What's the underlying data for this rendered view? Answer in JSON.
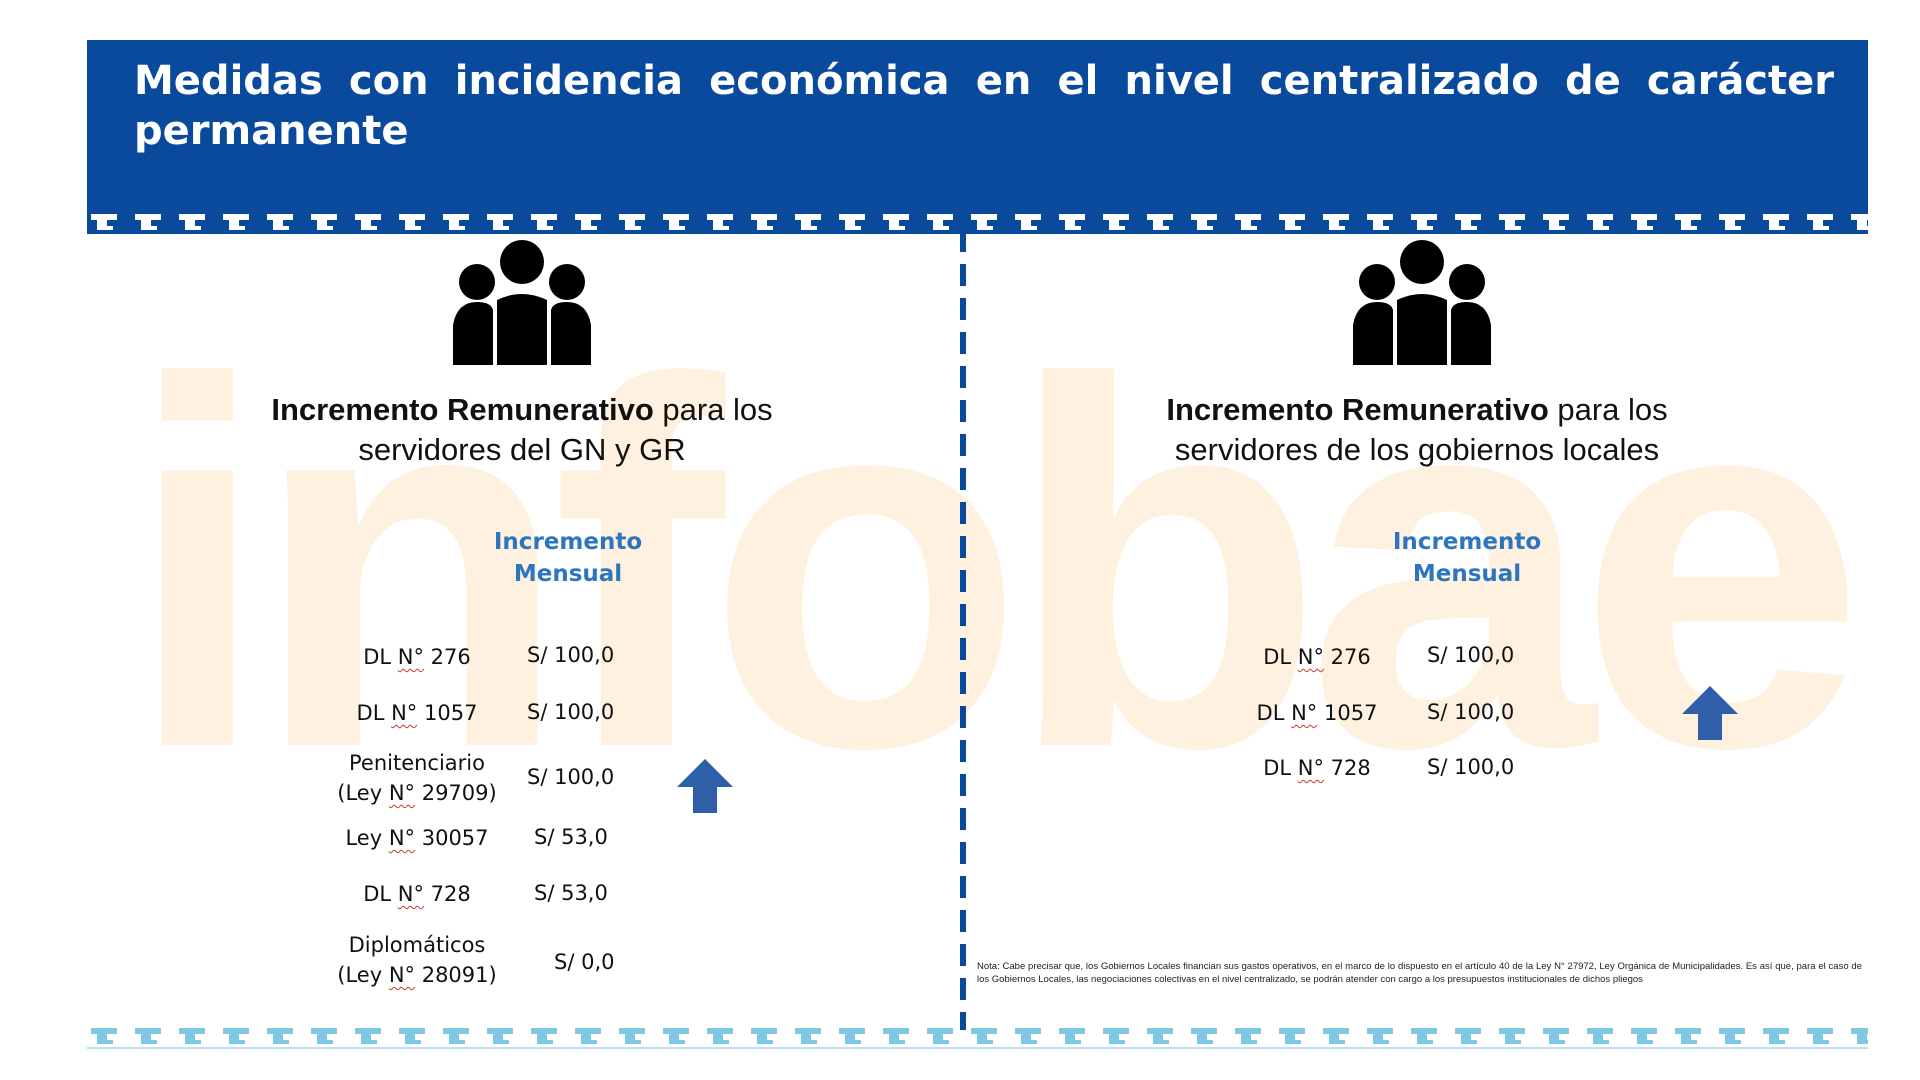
{
  "header": {
    "title": "Medidas con incidencia económica en el nivel centralizado de carácter permanente"
  },
  "colors": {
    "header_bg": "#0a4a9c",
    "accent_blue": "#2e75c0",
    "bottom_band": "#7ec8e3",
    "watermark": "#fff1e0",
    "arrow": "#2e5fa8"
  },
  "watermark_text": "infobae",
  "left_panel": {
    "heading_bold": "Incremento Remunerativo",
    "heading_rest_line1": " para los",
    "heading_line2": "servidores del GN y GR",
    "column_header_line1": "Incremento",
    "column_header_line2": "Mensual",
    "rows": [
      {
        "label_pre": "DL ",
        "label_no": "N°",
        "label_post": " 276",
        "label_line2": "",
        "value": "S/ 100,0"
      },
      {
        "label_pre": "DL ",
        "label_no": "N°",
        "label_post": " 1057",
        "label_line2": "",
        "value": "S/ 100,0"
      },
      {
        "label_line1": "Penitenciario",
        "label_pre": "(Ley ",
        "label_no": "N°",
        "label_post": " 29709)",
        "value": "S/ 100,0"
      },
      {
        "label_pre": "Ley ",
        "label_no": "N°",
        "label_post": " 30057",
        "label_line2": "",
        "value": "S/ 53,0"
      },
      {
        "label_pre": "DL ",
        "label_no": "N°",
        "label_post": " 728",
        "label_line2": "",
        "value": "S/ 53,0"
      },
      {
        "label_line1": "Diplomáticos",
        "label_pre": "(Ley ",
        "label_no": "N°",
        "label_post": " 28091)",
        "value": "S/ 0,0"
      }
    ],
    "arrow_icon": "arrow-up-icon"
  },
  "right_panel": {
    "heading_bold": "Incremento Remunerativo",
    "heading_rest_line1": " para los",
    "heading_line2": "servidores de los gobiernos locales",
    "column_header_line1": "Incremento",
    "column_header_line2": "Mensual",
    "rows": [
      {
        "label_pre": "DL ",
        "label_no": "N°",
        "label_post": " 276",
        "value": "S/ 100,0"
      },
      {
        "label_pre": "DL ",
        "label_no": "N°",
        "label_post": " 1057",
        "value": "S/ 100,0"
      },
      {
        "label_pre": "DL ",
        "label_no": "N°",
        "label_post": " 728",
        "value": "S/ 100,0"
      }
    ],
    "arrow_icon": "arrow-up-icon"
  },
  "note": "Nota: Cabe precisar que, los Gobiernos Locales financian sus gastos operativos, en el marco de lo dispuesto en el artículo 40 de la Ley N° 27972, Ley Orgánica de Municipalidades. Es así que, para el caso de los Gobiernos Locales, las negociaciones colectivas en el nivel centralizado, se podrán atender con cargo a los presupuestos institucionales de dichos pliegos"
}
